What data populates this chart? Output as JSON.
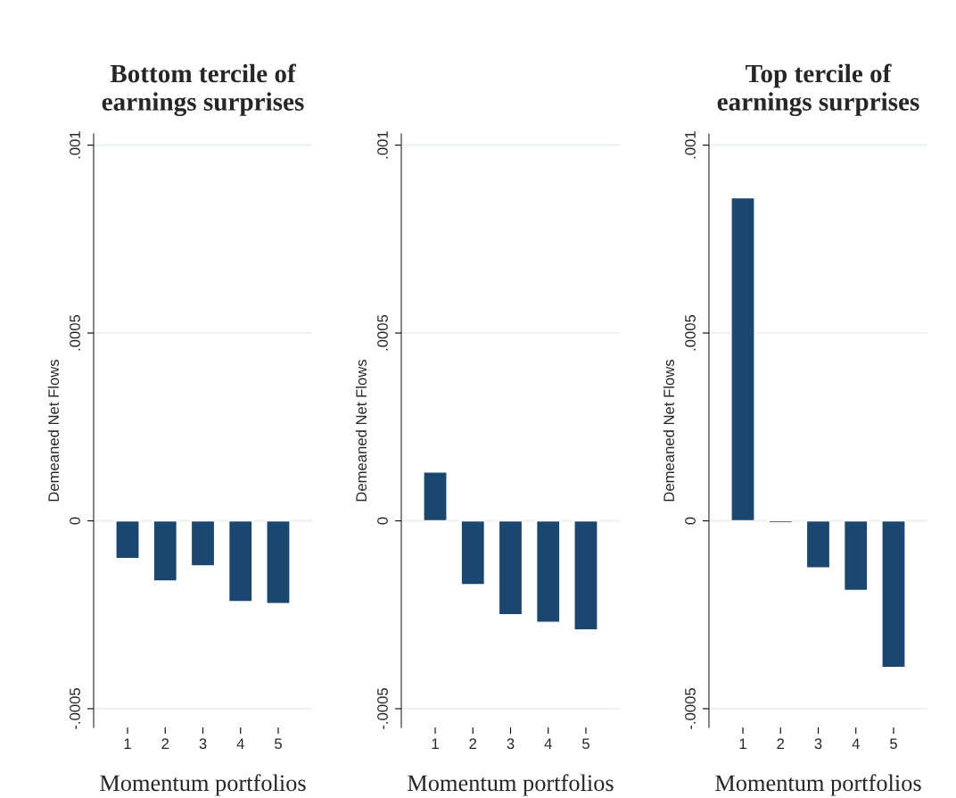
{
  "chart_data": [
    {
      "type": "bar",
      "title": "Bottom tercile of earnings surprises",
      "xlabel": "Momentum portfolios",
      "ylabel": "Demeaned Net Flows",
      "categories": [
        "1",
        "2",
        "3",
        "4",
        "5"
      ],
      "values": [
        -0.0001,
        -0.00016,
        -0.00012,
        -0.000215,
        -0.00022
      ],
      "color": "#1a476f",
      "ylim": [
        -0.00055,
        0.00103
      ],
      "yticks": [
        {
          "value": -0.0005,
          "label": "-.0005"
        },
        0,
        {
          "value": 0.0005,
          "label": ".0005"
        },
        {
          "value": 0.001,
          "label": ".001"
        }
      ],
      "grid": "y",
      "legend": false
    },
    {
      "type": "bar",
      "xlabel": "Momentum portfolios",
      "ylabel": "Demeaned Net Flows",
      "categories": [
        "1",
        "2",
        "3",
        "4",
        "5"
      ],
      "values": [
        0.00013,
        -0.00017,
        -0.00025,
        -0.00027,
        -0.00029
      ],
      "color": "#1a476f",
      "ylim": [
        -0.00055,
        0.00103
      ],
      "yticks": [
        {
          "value": -0.0005,
          "label": "-.0005"
        },
        0,
        {
          "value": 0.0005,
          "label": ".0005"
        },
        {
          "value": 0.001,
          "label": ".001"
        }
      ],
      "grid": "y",
      "legend": false
    },
    {
      "type": "bar",
      "title": "Top tercile of earnings surprises",
      "xlabel": "Momentum portfolios",
      "ylabel": "Demeaned Net Flows",
      "categories": [
        "1",
        "2",
        "3",
        "4",
        "5"
      ],
      "values": [
        0.00086,
        -5e-06,
        -0.000125,
        -0.000185,
        -0.00039
      ],
      "color": "#1a476f",
      "ylim": [
        -0.00055,
        0.00103
      ],
      "yticks": [
        {
          "value": -0.0005,
          "label": "-.0005"
        },
        0,
        {
          "value": 0.0005,
          "label": ".0005"
        },
        {
          "value": 0.001,
          "label": ".001"
        }
      ],
      "grid": "y",
      "legend": false
    }
  ]
}
